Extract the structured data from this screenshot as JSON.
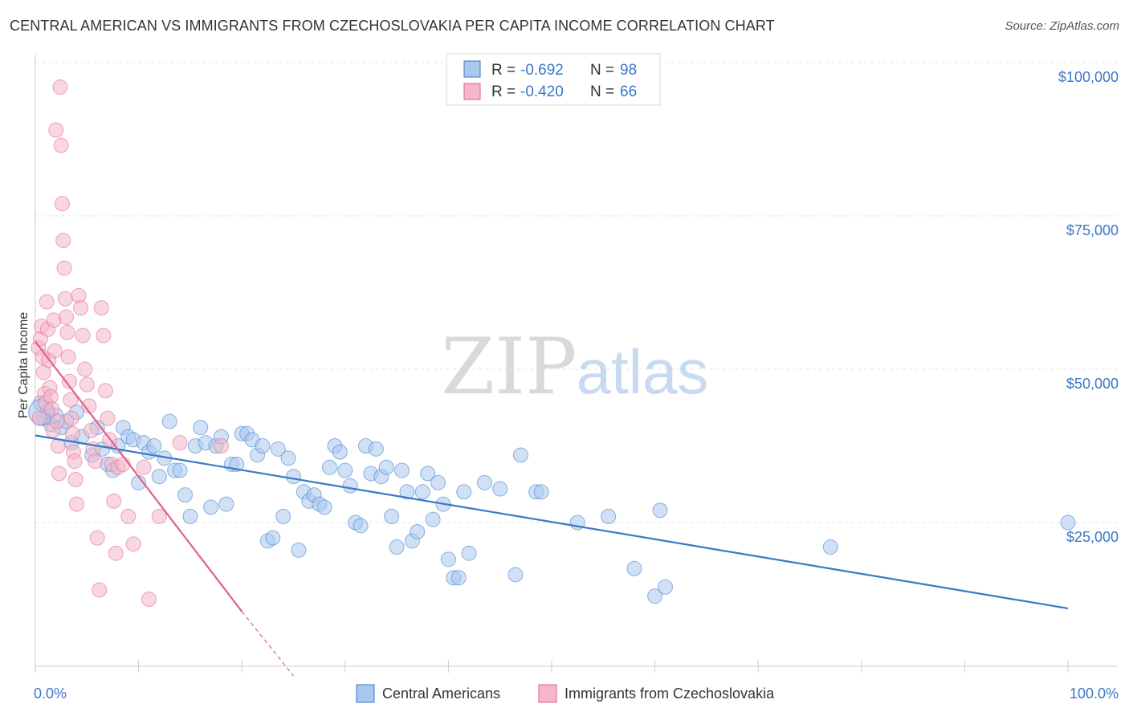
{
  "title": "CENTRAL AMERICAN VS IMMIGRANTS FROM CZECHOSLOVAKIA PER CAPITA INCOME CORRELATION CHART",
  "source": "Source: ZipAtlas.com",
  "watermark": {
    "zip": "ZIP",
    "atlas": "atlas"
  },
  "colors": {
    "blue": "#3b78c7",
    "blue_fill": "#aac8ee",
    "pink": "#e0608a",
    "pink_fill": "#f4b7c9"
  },
  "legend": {
    "r_label": "R =",
    "n_label": "N =",
    "rows": [
      {
        "r": "-0.692",
        "n": "98"
      },
      {
        "r": "-0.420",
        "n": "66"
      }
    ]
  },
  "chart_data": {
    "type": "scatter",
    "title": "CENTRAL AMERICAN VS IMMIGRANTS FROM CZECHOSLOVAKIA PER CAPITA INCOME CORRELATION CHART",
    "xlabel": "",
    "ylabel": "Per Capita Income",
    "xlim": [
      0,
      100
    ],
    "ylim": [
      0,
      102000
    ],
    "x_tick_labels": [
      "0.0%",
      "100.0%"
    ],
    "y_ticks": [
      25000,
      50000,
      75000,
      100000
    ],
    "y_tick_labels": [
      "$25,000",
      "$50,000",
      "$75,000",
      "$100,000"
    ],
    "grid": true,
    "legend_position": "top-center",
    "series": [
      {
        "name": "Central Americans",
        "color": "#3b78c7",
        "trend": {
          "x": [
            0,
            100
          ],
          "y": [
            39200,
            11000
          ]
        },
        "points": [
          [
            0.5,
            44.5
          ],
          [
            0.8,
            42.0
          ],
          [
            1.2,
            43.0
          ],
          [
            1.5,
            41.0
          ],
          [
            2.0,
            42.5
          ],
          [
            2.5,
            40.5
          ],
          [
            3.0,
            41.5
          ],
          [
            3.5,
            38.0
          ],
          [
            4.0,
            43.0
          ],
          [
            4.5,
            39.0
          ],
          [
            5.5,
            36.0
          ],
          [
            6.0,
            40.5
          ],
          [
            6.5,
            37.0
          ],
          [
            7.0,
            34.5
          ],
          [
            7.5,
            33.5
          ],
          [
            8.0,
            37.5
          ],
          [
            8.5,
            40.5
          ],
          [
            9.0,
            39.0
          ],
          [
            9.5,
            38.5
          ],
          [
            10.0,
            31.5
          ],
          [
            10.5,
            38.0
          ],
          [
            11.0,
            36.5
          ],
          [
            11.5,
            37.5
          ],
          [
            12.0,
            32.5
          ],
          [
            12.5,
            35.5
          ],
          [
            13.0,
            41.5
          ],
          [
            13.5,
            33.5
          ],
          [
            14.0,
            33.5
          ],
          [
            14.5,
            29.5
          ],
          [
            15.0,
            26.0
          ],
          [
            15.5,
            37.5
          ],
          [
            16.0,
            40.5
          ],
          [
            16.5,
            38.0
          ],
          [
            17.0,
            27.5
          ],
          [
            17.5,
            37.5
          ],
          [
            18.0,
            39.0
          ],
          [
            18.5,
            28.0
          ],
          [
            19.0,
            34.5
          ],
          [
            19.5,
            34.5
          ],
          [
            20.0,
            39.5
          ],
          [
            20.5,
            39.5
          ],
          [
            21.0,
            38.5
          ],
          [
            21.5,
            36.0
          ],
          [
            22.0,
            37.5
          ],
          [
            22.5,
            22.0
          ],
          [
            23.0,
            22.5
          ],
          [
            23.5,
            37.0
          ],
          [
            24.0,
            26.0
          ],
          [
            24.5,
            35.5
          ],
          [
            25.0,
            32.5
          ],
          [
            25.5,
            20.5
          ],
          [
            26.0,
            30.0
          ],
          [
            26.5,
            28.5
          ],
          [
            27.0,
            29.5
          ],
          [
            27.5,
            28.0
          ],
          [
            28.0,
            27.5
          ],
          [
            28.5,
            34.0
          ],
          [
            29.0,
            37.5
          ],
          [
            29.5,
            36.5
          ],
          [
            30.0,
            33.5
          ],
          [
            30.5,
            31.0
          ],
          [
            31.0,
            25.0
          ],
          [
            31.5,
            24.5
          ],
          [
            32.0,
            37.5
          ],
          [
            32.5,
            33.0
          ],
          [
            33.0,
            37.0
          ],
          [
            33.5,
            32.5
          ],
          [
            34.0,
            34.0
          ],
          [
            34.5,
            26.0
          ],
          [
            35.0,
            21.0
          ],
          [
            35.5,
            33.5
          ],
          [
            36.0,
            30.0
          ],
          [
            36.5,
            22.0
          ],
          [
            37.0,
            23.5
          ],
          [
            37.5,
            30.0
          ],
          [
            38.0,
            33.0
          ],
          [
            38.5,
            25.5
          ],
          [
            39.0,
            31.5
          ],
          [
            39.5,
            28.0
          ],
          [
            40.0,
            19.0
          ],
          [
            40.5,
            16.0
          ],
          [
            41.0,
            16.0
          ],
          [
            41.5,
            30.0
          ],
          [
            42.0,
            20.0
          ],
          [
            43.5,
            31.5
          ],
          [
            45.0,
            30.5
          ],
          [
            46.5,
            16.5
          ],
          [
            47.0,
            36.0
          ],
          [
            48.5,
            30.0
          ],
          [
            49.0,
            30.0
          ],
          [
            52.5,
            25.0
          ],
          [
            55.5,
            26.0
          ],
          [
            58.0,
            17.5
          ],
          [
            60.0,
            13.0
          ],
          [
            60.5,
            27.0
          ],
          [
            61.0,
            14.5
          ],
          [
            77.0,
            21.0
          ],
          [
            100.0,
            25.0
          ]
        ]
      },
      {
        "name": "Immigrants from Czechoslovakia",
        "color": "#e0608a",
        "trend": {
          "x": [
            0,
            20,
            25
          ],
          "y": [
            54500,
            10500,
            0
          ]
        },
        "points": [
          [
            0.3,
            53.5
          ],
          [
            0.5,
            55.0
          ],
          [
            0.6,
            57.0
          ],
          [
            0.7,
            52.0
          ],
          [
            0.8,
            49.5
          ],
          [
            0.9,
            46.0
          ],
          [
            1.0,
            44.5
          ],
          [
            1.1,
            61.0
          ],
          [
            1.2,
            56.5
          ],
          [
            1.3,
            51.5
          ],
          [
            1.4,
            47.0
          ],
          [
            1.5,
            45.5
          ],
          [
            1.6,
            43.5
          ],
          [
            1.7,
            40.0
          ],
          [
            1.8,
            58.0
          ],
          [
            1.9,
            53.0
          ],
          [
            2.0,
            89.0
          ],
          [
            2.1,
            41.5
          ],
          [
            2.2,
            37.5
          ],
          [
            2.3,
            33.0
          ],
          [
            2.4,
            96.0
          ],
          [
            2.5,
            86.5
          ],
          [
            2.6,
            77.0
          ],
          [
            2.7,
            71.0
          ],
          [
            2.8,
            66.5
          ],
          [
            2.9,
            61.5
          ],
          [
            3.0,
            58.5
          ],
          [
            3.1,
            56.0
          ],
          [
            3.2,
            52.0
          ],
          [
            3.3,
            48.0
          ],
          [
            3.4,
            45.0
          ],
          [
            3.5,
            42.0
          ],
          [
            3.6,
            39.5
          ],
          [
            3.7,
            36.5
          ],
          [
            3.8,
            35.0
          ],
          [
            3.9,
            32.0
          ],
          [
            4.0,
            28.0
          ],
          [
            4.2,
            62.0
          ],
          [
            4.4,
            60.0
          ],
          [
            4.6,
            55.5
          ],
          [
            4.8,
            50.0
          ],
          [
            5.0,
            47.5
          ],
          [
            5.2,
            44.0
          ],
          [
            5.4,
            40.0
          ],
          [
            5.6,
            37.0
          ],
          [
            5.8,
            35.0
          ],
          [
            6.0,
            22.5
          ],
          [
            6.2,
            14.0
          ],
          [
            6.4,
            60.0
          ],
          [
            6.6,
            55.5
          ],
          [
            6.8,
            46.5
          ],
          [
            7.0,
            42.0
          ],
          [
            7.2,
            38.5
          ],
          [
            7.4,
            34.5
          ],
          [
            7.6,
            28.5
          ],
          [
            7.8,
            20.0
          ],
          [
            8.0,
            34.0
          ],
          [
            8.5,
            34.5
          ],
          [
            9.0,
            26.0
          ],
          [
            9.5,
            21.5
          ],
          [
            10.5,
            34.0
          ],
          [
            11.0,
            12.5
          ],
          [
            12.0,
            26.0
          ],
          [
            14.0,
            38.0
          ],
          [
            18.0,
            37.5
          ],
          [
            0.4,
            42.0
          ]
        ]
      }
    ]
  }
}
